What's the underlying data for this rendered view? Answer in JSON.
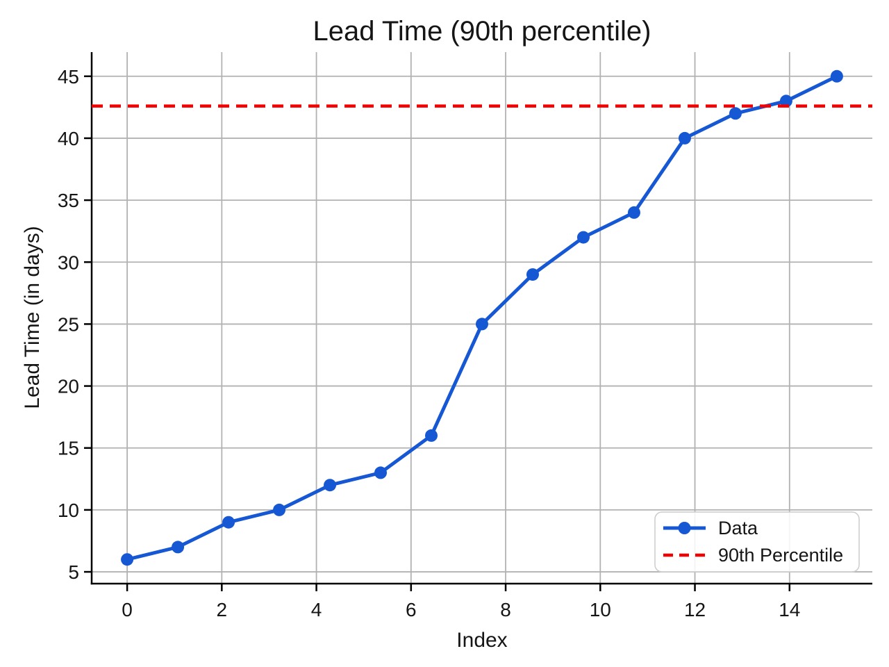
{
  "page": {
    "title": "Lead Time (90th percentile)"
  },
  "chart_data": {
    "type": "line",
    "title": "Lead Time (90th percentile)",
    "xlabel": "Index",
    "ylabel": "Lead Time (in days)",
    "x": [
      0,
      1.0714,
      2.1429,
      3.2143,
      4.2857,
      5.3571,
      6.4286,
      7.5,
      8.5714,
      9.6429,
      10.7143,
      11.7857,
      12.8571,
      13.9286,
      15
    ],
    "series": [
      {
        "name": "Data",
        "values": [
          6,
          7,
          9,
          10,
          12,
          13,
          16,
          25,
          29,
          32,
          34,
          40,
          42,
          43,
          45
        ],
        "color": "#1657d3",
        "marker": "circle",
        "line_style": "solid"
      }
    ],
    "reference_lines": [
      {
        "name": "90th Percentile",
        "value": 42.6,
        "color": "#f40000",
        "line_style": "dashed"
      }
    ],
    "x_ticks": [
      0,
      2,
      4,
      6,
      8,
      10,
      12,
      14
    ],
    "y_ticks": [
      5,
      10,
      15,
      20,
      25,
      30,
      35,
      40,
      45
    ],
    "xlim": [
      -0.75,
      15.75
    ],
    "ylim": [
      4.05,
      46.95
    ],
    "grid": true,
    "spines": [
      "left",
      "bottom"
    ],
    "legend": {
      "position": "lower-right",
      "entries": [
        {
          "label": "Data",
          "swatch": "line-with-marker",
          "color": "#1657d3"
        },
        {
          "label": "90th Percentile",
          "swatch": "dashed-line",
          "color": "#f40000"
        }
      ]
    },
    "colors": {
      "grid": "#b2b2b2",
      "spine": "#000000",
      "text": "#151515",
      "legend_border": "#cccccc",
      "background": "#ffffff"
    }
  }
}
